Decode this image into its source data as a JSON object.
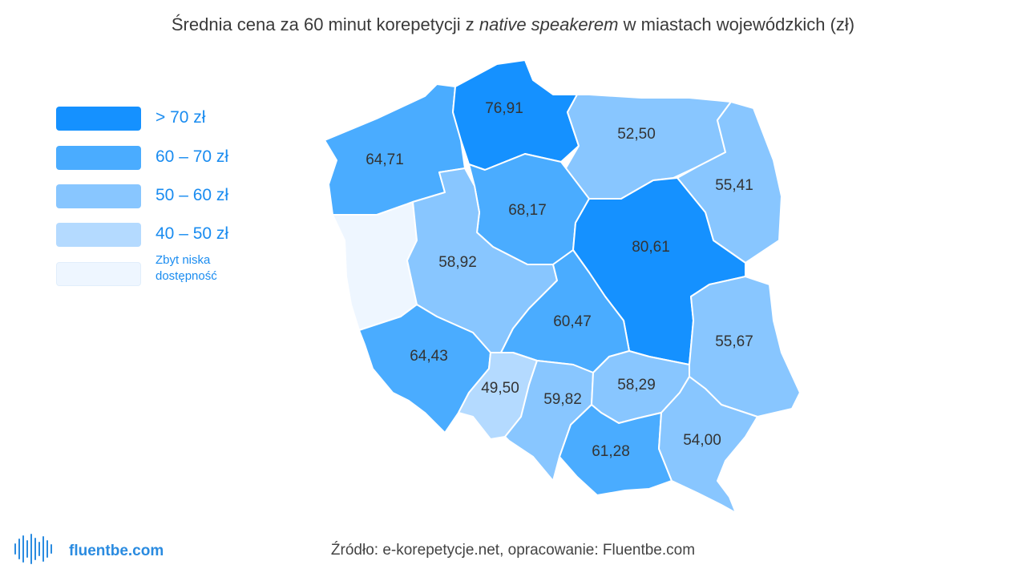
{
  "title": {
    "before": "Średnia cena za 60 minut korepetycji z ",
    "italic": "native speakerem",
    "after": " w miastach wojewódzkich (zł)"
  },
  "colors": {
    "gt70": "#1591ff",
    "c60_70": "#4aacff",
    "c50_60": "#88c6ff",
    "c40_50": "#b4daff",
    "low": "#eef6ff"
  },
  "legend": [
    {
      "label": "> 70 zł",
      "color": "#1591ff"
    },
    {
      "label": "60 – 70 zł",
      "color": "#4aacff"
    },
    {
      "label": "50 – 60 zł",
      "color": "#88c6ff"
    },
    {
      "label": "40 – 50 zł",
      "color": "#b4daff"
    },
    {
      "label": "Zbyt niska dostępność",
      "color": "#eef6ff"
    }
  ],
  "regions": [
    {
      "id": "pomorskie",
      "value": "76,91",
      "color": "#1591ff"
    },
    {
      "id": "warminsko-mazurskie",
      "value": "52,50",
      "color": "#88c6ff"
    },
    {
      "id": "zachodniopomorskie",
      "value": "64,71",
      "color": "#4aacff"
    },
    {
      "id": "podlaskie",
      "value": "55,41",
      "color": "#88c6ff"
    },
    {
      "id": "kujawsko-pomorskie",
      "value": "68,17",
      "color": "#4aacff"
    },
    {
      "id": "mazowieckie",
      "value": "80,61",
      "color": "#1591ff"
    },
    {
      "id": "wielkopolskie",
      "value": "58,92",
      "color": "#88c6ff"
    },
    {
      "id": "lubuskie",
      "value": "",
      "color": "#eef6ff"
    },
    {
      "id": "lodzkie",
      "value": "60,47",
      "color": "#4aacff"
    },
    {
      "id": "lubelskie",
      "value": "55,67",
      "color": "#88c6ff"
    },
    {
      "id": "dolnoslaskie",
      "value": "64,43",
      "color": "#4aacff"
    },
    {
      "id": "opolskie",
      "value": "49,50",
      "color": "#b4daff"
    },
    {
      "id": "slaskie",
      "value": "59,82",
      "color": "#88c6ff"
    },
    {
      "id": "swietokrzyskie",
      "value": "58,29",
      "color": "#88c6ff"
    },
    {
      "id": "malopolskie",
      "value": "61,28",
      "color": "#4aacff"
    },
    {
      "id": "podkarpackie",
      "value": "54,00",
      "color": "#88c6ff"
    }
  ],
  "source": "Źródło: e-korepetycje.net, opracowanie: Fluentbe.com",
  "logo": {
    "text": "fluentbe.com",
    "icon": "soundwave-icon"
  }
}
